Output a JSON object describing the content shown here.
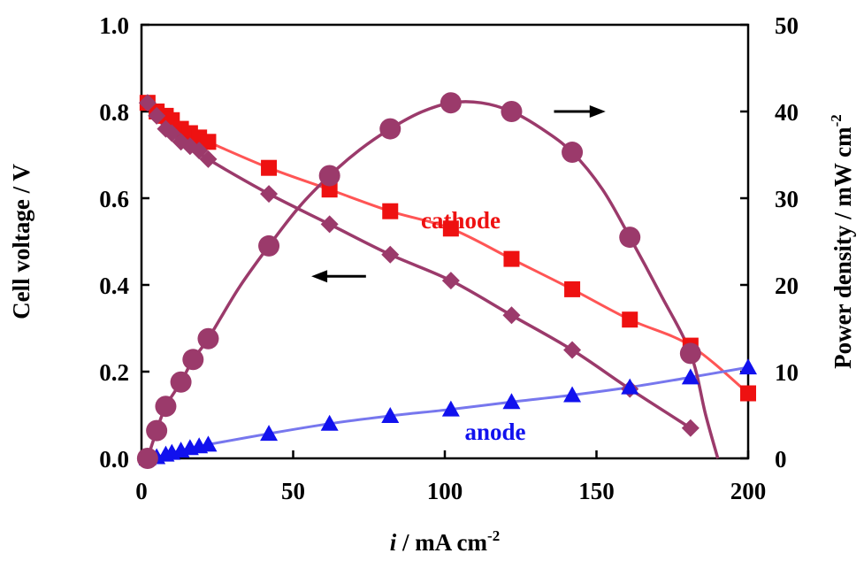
{
  "chart_data": {
    "type": "line",
    "title": "",
    "xlabel_italic": "i",
    "xlabel_rest": " / mA cm",
    "xlabel_sup": "-2",
    "ylabel_left": "Cell voltage / V",
    "ylabel_right_main": "Power density / mW cm",
    "ylabel_right_sup": "-2",
    "xlim": [
      0,
      200
    ],
    "ylim_left": [
      0,
      1.0
    ],
    "ylim_right": [
      0,
      50
    ],
    "x_ticks": [
      "0",
      "50",
      "100",
      "150",
      "200"
    ],
    "y_left_ticks": [
      "0.0",
      "0.2",
      "0.4",
      "0.6",
      "0.8",
      "1.0"
    ],
    "y_right_ticks": [
      "0",
      "10",
      "20",
      "30",
      "40",
      "50"
    ],
    "grid": false,
    "series": [
      {
        "name": "cathode",
        "axis": "left",
        "marker": "square",
        "color": "#ee1111",
        "line_color": "#ff5555",
        "x": [
          2,
          5,
          8,
          10,
          13,
          16,
          19,
          22,
          42,
          62,
          82,
          102,
          122,
          142,
          161,
          181,
          200
        ],
        "y": [
          0.82,
          0.8,
          0.79,
          0.78,
          0.76,
          0.75,
          0.74,
          0.73,
          0.67,
          0.62,
          0.57,
          0.53,
          0.46,
          0.39,
          0.32,
          0.26,
          0.15
        ]
      },
      {
        "name": "",
        "axis": "left",
        "marker": "diamond",
        "color": "#9b3a6b",
        "line_color": "#9b3a6b",
        "x": [
          2,
          5,
          8,
          10,
          13,
          16,
          19,
          22,
          42,
          62,
          82,
          102,
          122,
          142,
          161,
          181
        ],
        "y": [
          0.82,
          0.79,
          0.76,
          0.75,
          0.73,
          0.72,
          0.71,
          0.69,
          0.61,
          0.54,
          0.47,
          0.41,
          0.33,
          0.25,
          0.16,
          0.07
        ]
      },
      {
        "name": "anode",
        "axis": "left",
        "marker": "triangle",
        "color": "#1111ee",
        "line_color": "#7777ee",
        "x": [
          2,
          5,
          8,
          10,
          13,
          16,
          19,
          22,
          42,
          62,
          82,
          102,
          122,
          142,
          161,
          181,
          200
        ],
        "y": [
          0.0,
          0.003,
          0.009,
          0.013,
          0.018,
          0.024,
          0.028,
          0.032,
          0.057,
          0.08,
          0.098,
          0.113,
          0.13,
          0.146,
          0.164,
          0.187,
          0.21
        ]
      },
      {
        "name": "",
        "axis": "right",
        "marker": "circle",
        "color": "#9b3a6b",
        "line_color": "#9b3a6b",
        "x": [
          2,
          5,
          8,
          13,
          17,
          22,
          42,
          62,
          82,
          102,
          122,
          142,
          161,
          181
        ],
        "y": [
          0,
          3.2,
          6.0,
          8.8,
          11.4,
          13.8,
          24.5,
          32.6,
          38.0,
          41.0,
          40.0,
          35.3,
          25.5,
          12.1
        ],
        "curve_x": [
          2,
          5,
          8,
          13,
          17,
          22,
          32,
          42,
          52,
          62,
          72,
          82,
          92,
          102,
          112,
          122,
          132,
          142,
          152,
          161,
          171,
          181,
          186,
          190
        ],
        "curve_y": [
          0,
          3.2,
          6.0,
          8.8,
          11.4,
          13.8,
          19.6,
          24.5,
          29.0,
          32.6,
          35.6,
          38.0,
          39.9,
          41.0,
          41.0,
          40.0,
          38.0,
          35.3,
          31.0,
          25.5,
          19.0,
          12.1,
          5.0,
          0
        ]
      }
    ],
    "annotations": [
      {
        "type": "arrow",
        "direction": "right",
        "meaning": "power density on right axis",
        "x_from": 136,
        "x_to": 153,
        "y": 0.8
      },
      {
        "type": "arrow",
        "direction": "left",
        "meaning": "cell voltage on left axis",
        "x_from": 74,
        "x_to": 56,
        "y": 0.42
      }
    ]
  }
}
